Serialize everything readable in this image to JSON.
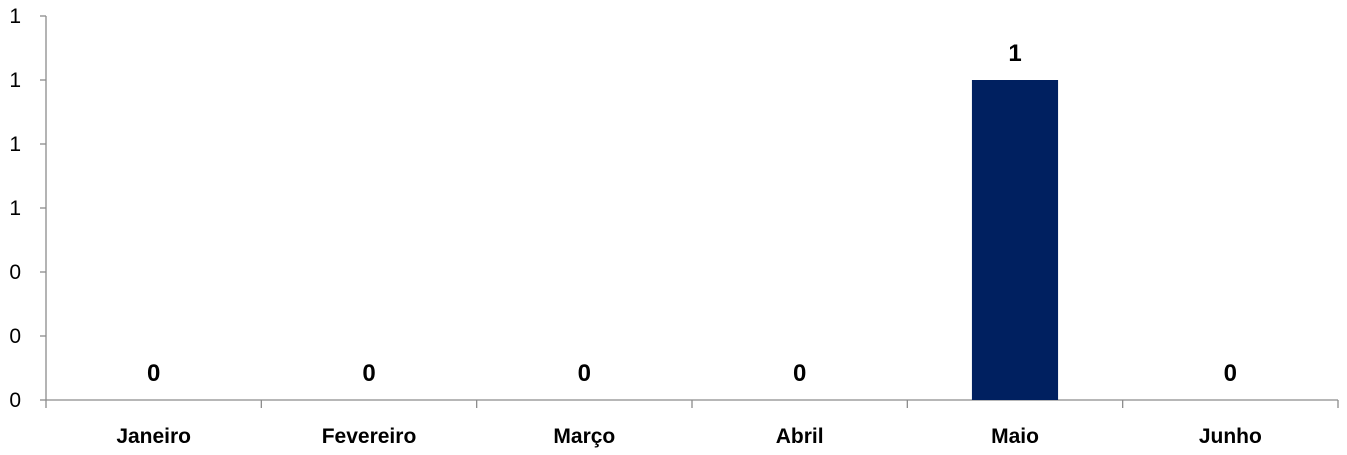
{
  "chart_data": {
    "type": "bar",
    "title": "",
    "xlabel": "",
    "ylabel": "",
    "categories": [
      "Janeiro",
      "Fevereiro",
      "Março",
      "Abril",
      "Maio",
      "Junho"
    ],
    "values": [
      0,
      0,
      0,
      0,
      1,
      0
    ],
    "data_labels": [
      "0",
      "0",
      "0",
      "0",
      "1",
      "0"
    ],
    "ylim": [
      0,
      1.2
    ],
    "y_ticks": [
      0,
      0.2,
      0.4,
      0.6,
      0.8,
      1,
      1.2
    ],
    "y_tick_labels": [
      "0",
      "0",
      "0",
      "1",
      "1",
      "1",
      "1"
    ],
    "grid": false,
    "legend": "none",
    "colors": {
      "bar": "#002060",
      "axis": "#8c8c8c",
      "text": "#000000"
    }
  }
}
